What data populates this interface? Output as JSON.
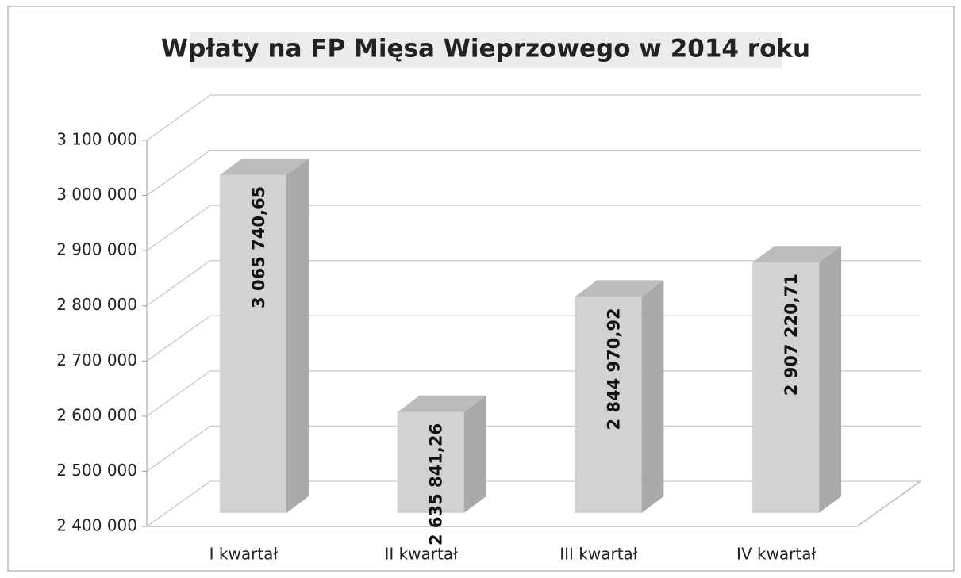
{
  "chart_data": {
    "type": "bar3d",
    "title": "Wpłaty na FP Mięsa Wieprzowego w 2014 roku",
    "categories": [
      "I kwartał",
      "II kwartał",
      "III kwartał",
      "IV kwartał"
    ],
    "values": [
      3065740.65,
      2635841.26,
      2844970.92,
      2907220.71
    ],
    "value_labels": [
      "3 065 740,65",
      "2 635 841,26",
      "2 844 970,92",
      "2 907 220,71"
    ],
    "color": "#d2d2d2",
    "ylim": [
      2400000,
      3100000
    ],
    "yticks": [
      {
        "value": 2400000,
        "label": "2 400 000"
      },
      {
        "value": 2500000,
        "label": "2 500 000"
      },
      {
        "value": 2600000,
        "label": "2 600 000"
      },
      {
        "value": 2700000,
        "label": "2 700 000"
      },
      {
        "value": 2800000,
        "label": "2 800 000"
      },
      {
        "value": 2900000,
        "label": "2 900 000"
      },
      {
        "value": 3000000,
        "label": "3 000 000"
      },
      {
        "value": 3100000,
        "label": "3 100 000"
      }
    ],
    "grid": true
  }
}
